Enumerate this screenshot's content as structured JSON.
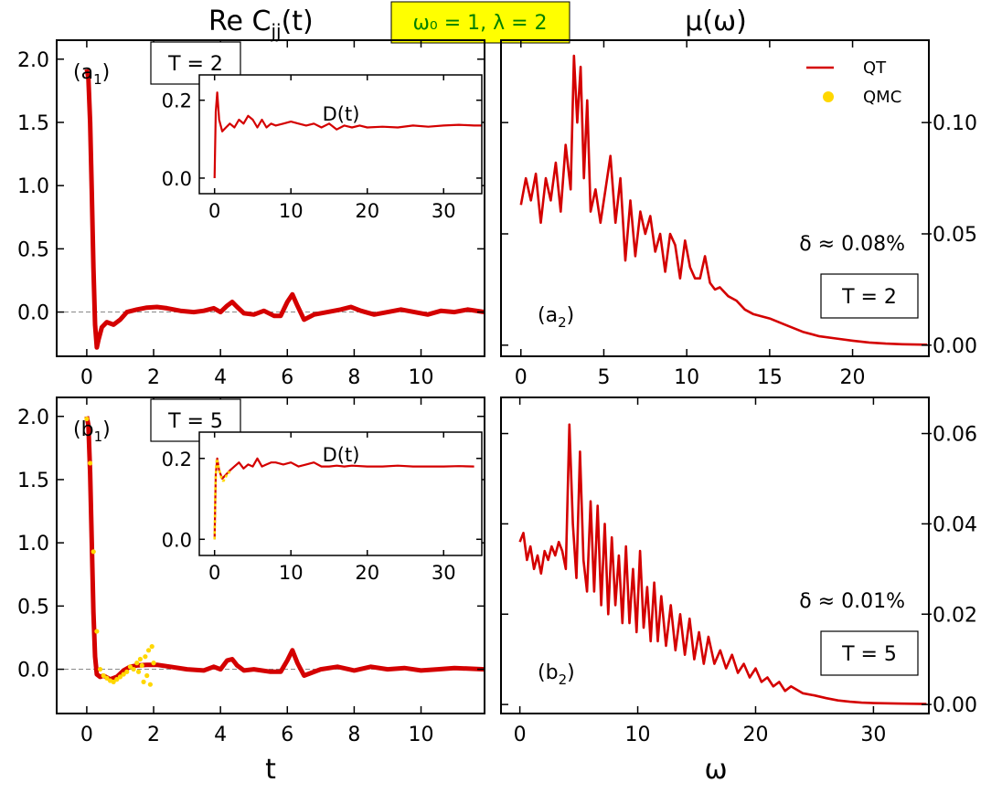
{
  "header": {
    "left_title": "Re C",
    "left_title_sub": "jj",
    "left_title_tail": "(t)",
    "right_title": "μ(ω)",
    "badge": "ω₀ = 1, λ = 2",
    "badge_color": "#ffff00",
    "badge_text_color": "#008000"
  },
  "colors": {
    "qt": "#d40000",
    "qmc": "#ffd700",
    "zero_line": "#888888"
  },
  "legend": {
    "qt": "QT",
    "qmc": "QMC"
  },
  "xlabels": {
    "left": "t",
    "right": "ω"
  },
  "chart_data": [
    {
      "id": "a1",
      "type": "line",
      "title": "Re C_jj(t)",
      "panel_label": "(a",
      "panel_sub": "1",
      "panel_tail": ")",
      "temp_box": "T = 2",
      "xlim": [
        -0.9,
        11.9
      ],
      "ylim": [
        -0.35,
        2.15
      ],
      "xticks": [
        0,
        2,
        4,
        6,
        8,
        10
      ],
      "xticklabels": [
        "0",
        "2",
        "4",
        "6",
        "8",
        "10"
      ],
      "yticks": [
        0,
        0.5,
        1,
        1.5,
        2
      ],
      "yticklabels": [
        "0.0",
        "0.5",
        "1.0",
        "1.5",
        "2.0"
      ],
      "series": [
        {
          "name": "QT",
          "x": [
            0,
            0.05,
            0.1,
            0.15,
            0.2,
            0.25,
            0.3,
            0.35,
            0.45,
            0.6,
            0.8,
            1.0,
            1.2,
            1.5,
            1.8,
            2.1,
            2.4,
            2.8,
            3.2,
            3.5,
            3.8,
            4.0,
            4.2,
            4.35,
            4.5,
            4.7,
            5.0,
            5.3,
            5.6,
            5.8,
            6.0,
            6.15,
            6.3,
            6.5,
            6.8,
            7.2,
            7.6,
            7.9,
            8.2,
            8.6,
            9.0,
            9.4,
            9.8,
            10.2,
            10.6,
            11.0,
            11.4,
            11.9
          ],
          "y": [
            1.92,
            1.85,
            1.5,
            0.95,
            0.35,
            -0.1,
            -0.28,
            -0.22,
            -0.12,
            -0.08,
            -0.1,
            -0.06,
            0.0,
            0.02,
            0.035,
            0.04,
            0.03,
            0.01,
            0.0,
            0.01,
            0.03,
            0.0,
            0.05,
            0.08,
            0.04,
            -0.01,
            -0.02,
            0.01,
            -0.03,
            -0.03,
            0.08,
            0.14,
            0.05,
            -0.06,
            -0.02,
            0.0,
            0.02,
            0.04,
            0.01,
            -0.02,
            0.0,
            0.02,
            0.0,
            -0.02,
            0.01,
            0.0,
            0.02,
            0.0
          ]
        }
      ]
    },
    {
      "id": "a1_inset",
      "type": "line",
      "title": "D(t)",
      "xlim": [
        -2,
        35
      ],
      "ylim": [
        -0.04,
        0.265
      ],
      "xticks": [
        0,
        10,
        20,
        30
      ],
      "xticklabels": [
        "0",
        "10",
        "20",
        "30"
      ],
      "yticks": [
        0,
        0.2
      ],
      "yticklabels": [
        "0.0",
        "0.2"
      ],
      "series": [
        {
          "name": "QT",
          "x": [
            0,
            0.15,
            0.35,
            0.6,
            1.0,
            1.5,
            2.0,
            2.6,
            3.2,
            3.8,
            4.4,
            5.0,
            5.6,
            6.2,
            6.8,
            7.4,
            8.0,
            9.0,
            10,
            11,
            12,
            13,
            14,
            15,
            16,
            17,
            18,
            19,
            20,
            22,
            24,
            26,
            28,
            30,
            32,
            34,
            35
          ],
          "y": [
            0.0,
            0.17,
            0.22,
            0.15,
            0.12,
            0.13,
            0.14,
            0.13,
            0.15,
            0.14,
            0.16,
            0.15,
            0.13,
            0.15,
            0.13,
            0.14,
            0.135,
            0.14,
            0.145,
            0.14,
            0.135,
            0.14,
            0.13,
            0.14,
            0.125,
            0.135,
            0.13,
            0.135,
            0.13,
            0.132,
            0.13,
            0.135,
            0.132,
            0.135,
            0.137,
            0.135,
            0.135
          ]
        }
      ]
    },
    {
      "id": "a2",
      "type": "line",
      "title": "μ(ω)",
      "panel_label": "(a",
      "panel_sub": "2",
      "panel_tail": ")",
      "temp_box": "T = 2",
      "delta_label": "δ ≈ 0.08%",
      "xlim": [
        -1.2,
        24.6
      ],
      "ylim": [
        -0.005,
        0.137
      ],
      "xticks": [
        0,
        5,
        10,
        15,
        20
      ],
      "xticklabels": [
        "0",
        "5",
        "10",
        "15",
        "20"
      ],
      "yticks": [
        0,
        0.05,
        0.1
      ],
      "yticklabels": [
        "0.00",
        "0.05",
        "0.10"
      ],
      "series": [
        {
          "name": "QT",
          "x": [
            0,
            0.3,
            0.6,
            0.9,
            1.2,
            1.5,
            1.8,
            2.1,
            2.4,
            2.7,
            3.0,
            3.2,
            3.4,
            3.6,
            3.8,
            4.0,
            4.2,
            4.5,
            4.8,
            5.1,
            5.4,
            5.7,
            6.0,
            6.3,
            6.6,
            6.9,
            7.2,
            7.5,
            7.8,
            8.1,
            8.4,
            8.7,
            9.0,
            9.3,
            9.6,
            9.9,
            10.2,
            10.5,
            10.8,
            11.1,
            11.4,
            11.7,
            12.0,
            12.5,
            13.0,
            13.5,
            14.0,
            15,
            16,
            17,
            18,
            19,
            20,
            21,
            22,
            23,
            24.5
          ],
          "y": [
            0.063,
            0.075,
            0.065,
            0.077,
            0.055,
            0.075,
            0.065,
            0.082,
            0.06,
            0.09,
            0.07,
            0.13,
            0.1,
            0.125,
            0.075,
            0.11,
            0.06,
            0.07,
            0.055,
            0.07,
            0.085,
            0.055,
            0.075,
            0.038,
            0.065,
            0.04,
            0.06,
            0.05,
            0.058,
            0.042,
            0.05,
            0.033,
            0.05,
            0.045,
            0.03,
            0.047,
            0.035,
            0.03,
            0.03,
            0.04,
            0.028,
            0.025,
            0.026,
            0.022,
            0.02,
            0.016,
            0.014,
            0.012,
            0.009,
            0.006,
            0.004,
            0.003,
            0.002,
            0.0012,
            0.0007,
            0.0004,
            0.0002
          ]
        }
      ]
    },
    {
      "id": "b1",
      "type": "line",
      "title": "Re C_jj(t)",
      "panel_label": "(b",
      "panel_sub": "1",
      "panel_tail": ")",
      "temp_box": "T = 5",
      "xlim": [
        -0.9,
        11.9
      ],
      "ylim": [
        -0.35,
        2.15
      ],
      "xticks": [
        0,
        2,
        4,
        6,
        8,
        10
      ],
      "xticklabels": [
        "0",
        "2",
        "4",
        "6",
        "8",
        "10"
      ],
      "yticks": [
        0,
        0.5,
        1,
        1.5,
        2
      ],
      "yticklabels": [
        "0.0",
        "0.5",
        "1.0",
        "1.5",
        "2.0"
      ],
      "series": [
        {
          "name": "QT",
          "x": [
            0,
            0.05,
            0.1,
            0.15,
            0.2,
            0.25,
            0.3,
            0.4,
            0.5,
            0.7,
            0.9,
            1.1,
            1.3,
            1.5,
            1.8,
            2.1,
            2.5,
            3.0,
            3.5,
            3.8,
            4.0,
            4.2,
            4.35,
            4.5,
            4.7,
            5.0,
            5.5,
            5.8,
            6.0,
            6.15,
            6.3,
            6.5,
            7.0,
            7.5,
            8.0,
            8.5,
            9.0,
            9.5,
            10.0,
            10.5,
            11.0,
            11.9
          ],
          "y": [
            2.0,
            1.93,
            1.55,
            1.0,
            0.45,
            0.1,
            -0.04,
            -0.06,
            -0.05,
            -0.08,
            -0.06,
            -0.01,
            0.02,
            0.03,
            0.035,
            0.035,
            0.02,
            0.0,
            -0.01,
            0.02,
            0.0,
            0.07,
            0.08,
            0.03,
            -0.01,
            0.0,
            -0.02,
            -0.02,
            0.07,
            0.15,
            0.05,
            -0.05,
            0.0,
            0.02,
            -0.01,
            0.02,
            0.0,
            0.01,
            -0.01,
            0.0,
            0.01,
            0.0
          ]
        },
        {
          "name": "QMC",
          "x": [
            0,
            0.1,
            0.2,
            0.3,
            0.4,
            0.5,
            0.6,
            0.7,
            0.8,
            0.9,
            1.0,
            1.1,
            1.2,
            1.3,
            1.4,
            1.5,
            1.55,
            1.6,
            1.65,
            1.7,
            1.75,
            1.8,
            1.85,
            1.9,
            1.95,
            2.0
          ],
          "y": [
            1.98,
            1.63,
            0.93,
            0.3,
            0.0,
            -0.05,
            -0.07,
            -0.09,
            -0.1,
            -0.08,
            -0.06,
            -0.04,
            -0.02,
            0.02,
            0.0,
            0.05,
            -0.02,
            0.08,
            0.03,
            -0.1,
            0.1,
            -0.05,
            0.15,
            -0.12,
            0.18,
            0.05
          ]
        }
      ]
    },
    {
      "id": "b1_inset",
      "type": "line",
      "title": "D(t)",
      "xlim": [
        -2,
        35
      ],
      "ylim": [
        -0.04,
        0.265
      ],
      "xticks": [
        0,
        10,
        20,
        30
      ],
      "xticklabels": [
        "0",
        "10",
        "20",
        "30"
      ],
      "yticks": [
        0,
        0.2
      ],
      "yticklabels": [
        "0.0",
        "0.2"
      ],
      "series": [
        {
          "name": "QT",
          "x": [
            0,
            0.15,
            0.35,
            0.6,
            1.0,
            1.5,
            2.0,
            2.6,
            3.2,
            3.8,
            4.4,
            5.0,
            5.6,
            6.2,
            6.8,
            7.4,
            8,
            9,
            10,
            11,
            12,
            13,
            14,
            15,
            16,
            17,
            18,
            20,
            22,
            24,
            26,
            28,
            30,
            32,
            34
          ],
          "y": [
            0.0,
            0.16,
            0.2,
            0.17,
            0.15,
            0.16,
            0.17,
            0.18,
            0.19,
            0.175,
            0.185,
            0.18,
            0.2,
            0.18,
            0.185,
            0.19,
            0.19,
            0.185,
            0.19,
            0.18,
            0.185,
            0.19,
            0.18,
            0.18,
            0.182,
            0.18,
            0.182,
            0.18,
            0.18,
            0.182,
            0.18,
            0.18,
            0.18,
            0.181,
            0.18
          ]
        },
        {
          "name": "QMC",
          "x": [
            0,
            0.1,
            0.2,
            0.3,
            0.4,
            0.5,
            0.6,
            0.7,
            0.8,
            0.9,
            1.0,
            1.1,
            1.2,
            1.3,
            1.4,
            1.5,
            1.6,
            1.7,
            1.8,
            1.9,
            2.0
          ],
          "y": [
            0.0,
            0.12,
            0.18,
            0.2,
            0.19,
            0.18,
            0.175,
            0.165,
            0.16,
            0.15,
            0.15,
            0.145,
            0.145,
            0.15,
            0.15,
            0.155,
            0.16,
            0.16,
            0.165,
            0.165,
            0.17
          ]
        }
      ]
    },
    {
      "id": "b2",
      "type": "line",
      "title": "μ(ω)",
      "panel_label": "(b",
      "panel_sub": "2",
      "panel_tail": ")",
      "temp_box": "T = 5",
      "delta_label": "δ ≈ 0.01%",
      "xlim": [
        -1.6,
        34.7
      ],
      "ylim": [
        -0.002,
        0.068
      ],
      "xticks": [
        0,
        10,
        20,
        30
      ],
      "xticklabels": [
        "0",
        "10",
        "20",
        "30"
      ],
      "yticks": [
        0,
        0.02,
        0.04,
        0.06
      ],
      "yticklabels": [
        "0.00",
        "0.02",
        "0.04",
        "0.06"
      ],
      "series": [
        {
          "name": "QT",
          "x": [
            0,
            0.3,
            0.6,
            0.9,
            1.2,
            1.5,
            1.8,
            2.1,
            2.4,
            2.7,
            3.0,
            3.3,
            3.6,
            3.9,
            4.2,
            4.5,
            4.8,
            5.1,
            5.4,
            5.7,
            6.0,
            6.3,
            6.6,
            6.9,
            7.2,
            7.5,
            7.8,
            8.1,
            8.4,
            8.7,
            9.0,
            9.3,
            9.6,
            9.9,
            10.2,
            10.5,
            10.8,
            11.1,
            11.4,
            11.7,
            12.0,
            12.4,
            12.8,
            13.2,
            13.6,
            14.0,
            14.4,
            14.8,
            15.2,
            15.6,
            16.0,
            16.5,
            17.0,
            17.5,
            18.0,
            18.5,
            19.0,
            19.5,
            20.0,
            20.5,
            21.0,
            21.5,
            22.0,
            22.5,
            23.0,
            24,
            25,
            26,
            27,
            28,
            29,
            30,
            32,
            34.5
          ],
          "y": [
            0.036,
            0.038,
            0.032,
            0.035,
            0.03,
            0.033,
            0.029,
            0.034,
            0.032,
            0.035,
            0.033,
            0.036,
            0.034,
            0.03,
            0.062,
            0.04,
            0.028,
            0.056,
            0.032,
            0.025,
            0.045,
            0.025,
            0.044,
            0.022,
            0.04,
            0.02,
            0.037,
            0.022,
            0.033,
            0.018,
            0.035,
            0.018,
            0.03,
            0.016,
            0.034,
            0.017,
            0.026,
            0.014,
            0.027,
            0.014,
            0.024,
            0.013,
            0.022,
            0.012,
            0.02,
            0.011,
            0.019,
            0.01,
            0.016,
            0.009,
            0.015,
            0.009,
            0.012,
            0.008,
            0.011,
            0.007,
            0.009,
            0.006,
            0.008,
            0.005,
            0.006,
            0.004,
            0.005,
            0.003,
            0.004,
            0.0025,
            0.002,
            0.0014,
            0.0009,
            0.0006,
            0.0004,
            0.0003,
            0.0002,
            0.0001
          ]
        }
      ]
    }
  ]
}
